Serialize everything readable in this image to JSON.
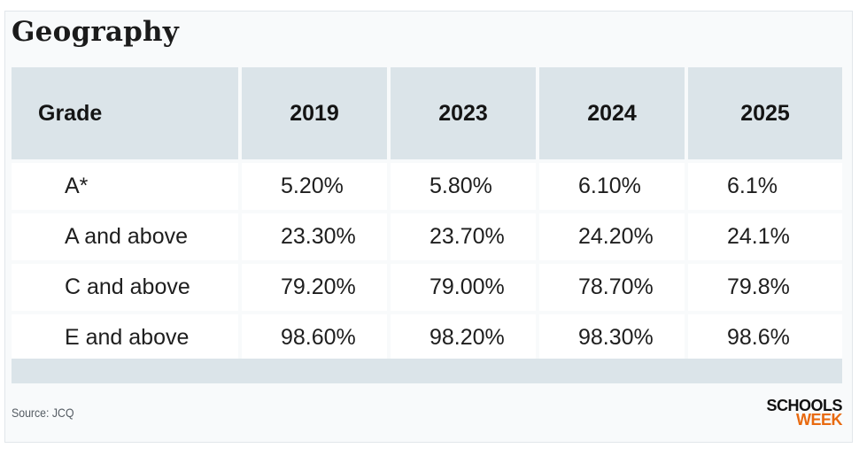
{
  "title": "Geography",
  "table": {
    "header": [
      "Grade",
      "2019",
      "2023",
      "2024",
      "2025"
    ],
    "rows": [
      [
        "A*",
        "5.20%",
        "5.80%",
        "6.10%",
        "6.1%"
      ],
      [
        "A and above",
        "23.30%",
        "23.70%",
        "24.20%",
        "24.1%"
      ],
      [
        "C and above",
        "79.20%",
        "79.00%",
        "78.70%",
        "79.8%"
      ],
      [
        "E and above",
        "98.60%",
        "98.20%",
        "98.30%",
        "98.6%"
      ]
    ]
  },
  "footer": {
    "source": "Source: JCQ",
    "logo_line1": "SCHOOLS",
    "logo_line2": "WEEK"
  },
  "colors": {
    "header_bg": "#dbe4e9",
    "logo_accent": "#e86a10"
  }
}
